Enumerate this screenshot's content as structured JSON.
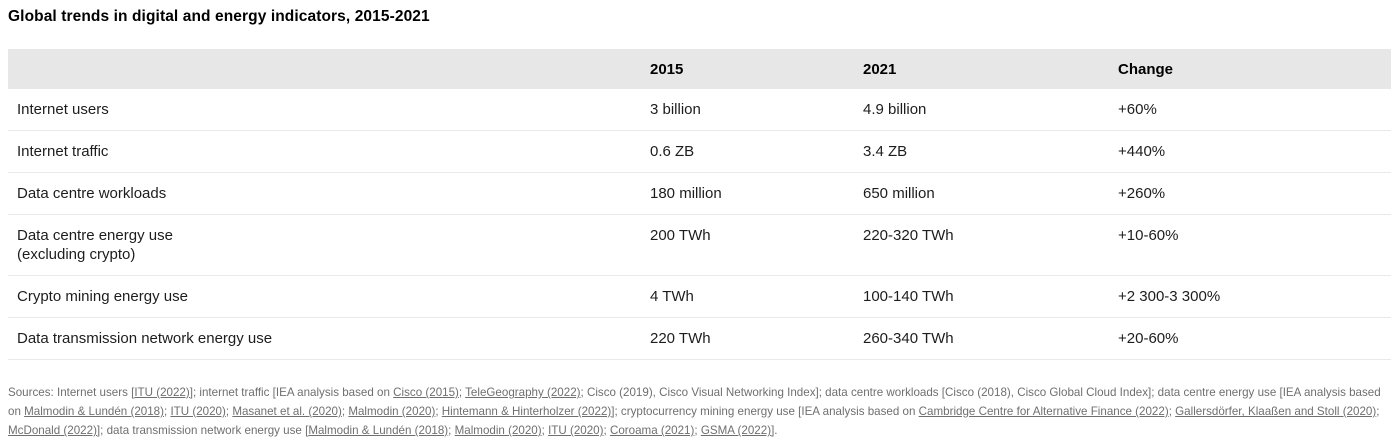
{
  "title": "Global trends in digital and energy indicators, 2015-2021",
  "chart_data": {
    "type": "table",
    "title": "Global trends in digital and energy indicators, 2015-2021",
    "columns": [
      "",
      "2015",
      "2021",
      "Change"
    ],
    "rows": [
      {
        "label": "Internet users",
        "y2015": "3 billion",
        "y2021": "4.9 billion",
        "change": "+60%"
      },
      {
        "label": "Internet traffic",
        "y2015": "0.6 ZB",
        "y2021": "3.4 ZB",
        "change": "+440%"
      },
      {
        "label": "Data centre workloads",
        "y2015": "180 million",
        "y2021": "650 million",
        "change": "+260%"
      },
      {
        "label": "Data centre energy use\n(excluding crypto)",
        "y2015": "200 TWh",
        "y2021": "220-320 TWh",
        "change": "+10-60%"
      },
      {
        "label": "Crypto mining energy use",
        "y2015": "4 TWh",
        "y2021": "100-140 TWh",
        "change": "+2 300-3 300%"
      },
      {
        "label": "Data transmission network energy use",
        "y2015": "220 TWh",
        "y2021": "260-340 TWh",
        "change": "+20-60%"
      }
    ],
    "layout": {
      "header_background": "#e7e7e7",
      "row_divider": "#e9e9e9",
      "grid": "horizontal-only",
      "header_position": "top"
    }
  },
  "colors": {
    "header_bg": "#e7e7e7",
    "row_border": "#e9e9e9",
    "body_text": "#1d1d1d",
    "footnote_text": "#6f6f6f",
    "background": "#ffffff"
  },
  "footnote": {
    "segments": [
      {
        "text": "Sources: Internet users [",
        "link": false
      },
      {
        "text": "ITU (2022)]",
        "link": true
      },
      {
        "text": "; internet traffic [IEA analysis based on ",
        "link": false
      },
      {
        "text": "Cisco (2015)",
        "link": true
      },
      {
        "text": "; ",
        "link": false
      },
      {
        "text": "TeleGeography (2022)",
        "link": true
      },
      {
        "text": "; Cisco (2019), Cisco Visual Networking Index]; data centre workloads [Cisco (2018), Cisco Global Cloud Index]; data centre energy use [IEA analysis based on ",
        "link": false
      },
      {
        "text": "Malmodin & Lundén (2018)",
        "link": true
      },
      {
        "text": "; ",
        "link": false
      },
      {
        "text": "ITU (2020)",
        "link": true
      },
      {
        "text": "; ",
        "link": false
      },
      {
        "text": "Masanet et al. (2020)",
        "link": true
      },
      {
        "text": "; ",
        "link": false
      },
      {
        "text": "Malmodin (2020)",
        "link": true
      },
      {
        "text": "; ",
        "link": false
      },
      {
        "text": "Hintemann & Hinterholzer (2022)]",
        "link": true
      },
      {
        "text": "; cryptocurrency mining energy use [IEA analysis based on ",
        "link": false
      },
      {
        "text": "Cambridge Centre for Alternative Finance (2022)",
        "link": true
      },
      {
        "text": "; ",
        "link": false
      },
      {
        "text": "Gallersdörfer, Klaaßen and Stoll (2020)",
        "link": true
      },
      {
        "text": "; ",
        "link": false
      },
      {
        "text": "McDonald (2022)]",
        "link": true
      },
      {
        "text": "; data transmission network energy use [",
        "link": false
      },
      {
        "text": "Malmodin & Lundén (2018)",
        "link": true
      },
      {
        "text": "; ",
        "link": false
      },
      {
        "text": "Malmodin (2020)",
        "link": true
      },
      {
        "text": "; ",
        "link": false
      },
      {
        "text": "ITU (2020)",
        "link": true
      },
      {
        "text": "; ",
        "link": false
      },
      {
        "text": "Coroama (2021)",
        "link": true
      },
      {
        "text": "; ",
        "link": false
      },
      {
        "text": "GSMA (2022)]",
        "link": true
      },
      {
        "text": ".",
        "link": false
      }
    ]
  }
}
